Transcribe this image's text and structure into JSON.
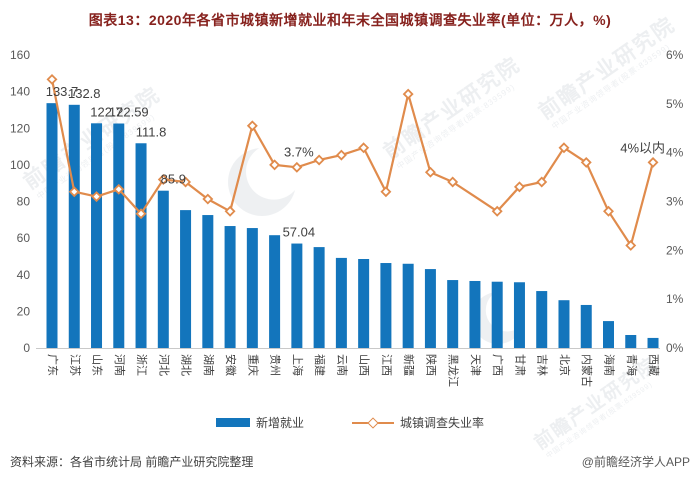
{
  "title": "图表13：2020年各省市城镇新增就业和年末全国城镇调查失业率(单位：万人，%)",
  "legend": {
    "bar_label": "新增就业",
    "line_label": "城镇调查失业率"
  },
  "footer": {
    "source": "资料来源：各省市统计局 前瞻产业研究院整理",
    "credit": "@前瞻经济学人APP"
  },
  "watermark": {
    "brand": "前瞻产业研究院",
    "tagline": "中国产业咨询领导者(股票:839599)",
    "short": "前瞻"
  },
  "colors": {
    "bar": "#1375BC",
    "line": "#E08B4C",
    "title": "#87221E",
    "axis_text": "#595959",
    "xlabel_text": "#3F3F3F",
    "value_label_text": "#404040",
    "axis_line": "#C9C9C9",
    "watermark": "#DFE3E7"
  },
  "chart_data": {
    "type": "bar+line",
    "title": "图表13：2020年各省市城镇新增就业和年末全国城镇调查失业率(单位：万人，%)",
    "grid": false,
    "legend_position": "bottom",
    "categories": [
      "广东",
      "江苏",
      "山东",
      "河南",
      "浙江",
      "河北",
      "湖北",
      "湖南",
      "安徽",
      "重庆",
      "贵州",
      "上海",
      "福建",
      "云南",
      "山西",
      "江西",
      "新疆",
      "陕西",
      "黑龙江",
      "天津",
      "广西",
      "甘肃",
      "吉林",
      "北京",
      "内蒙古",
      "海南",
      "青海",
      "西藏"
    ],
    "series": [
      {
        "name": "新增就业",
        "type": "bar",
        "axis": "left",
        "unit": "万人",
        "values": [
          133.7,
          132.8,
          122.7,
          122.59,
          111.8,
          85.9,
          75.3,
          72.6,
          66.6,
          65.5,
          61.6,
          57.04,
          55.1,
          49.2,
          48.6,
          46.4,
          46.0,
          43.1,
          37.1,
          36.6,
          36.2,
          35.9,
          31.1,
          26.1,
          23.5,
          14.7,
          7.1,
          5.5
        ]
      },
      {
        "name": "城镇调查失业率",
        "type": "line",
        "axis": "right",
        "unit": "%",
        "values": [
          5.5,
          3.2,
          3.1,
          3.25,
          2.75,
          3.45,
          3.4,
          3.05,
          2.8,
          4.55,
          3.75,
          3.7,
          3.85,
          3.95,
          4.1,
          3.2,
          5.2,
          3.6,
          3.4,
          3.1,
          2.8,
          3.3,
          3.4,
          4.1,
          3.8,
          2.8,
          2.1,
          3.8
        ]
      }
    ],
    "marker_hidden": [
      "天津"
    ],
    "point_labels": {
      "bar": {
        "0": "133.7",
        "1": "132.8",
        "2": "122.7",
        "3": "122.59",
        "4": "111.8",
        "5": "85.9",
        "11": "57.04"
      },
      "line": {
        "11": "3.7%",
        "27": "4%以内"
      }
    },
    "left_axis": {
      "min": 0,
      "max": 160,
      "step": 20
    },
    "right_axis": {
      "min": 0,
      "max": 6,
      "step": 1,
      "suffix": "%"
    }
  }
}
